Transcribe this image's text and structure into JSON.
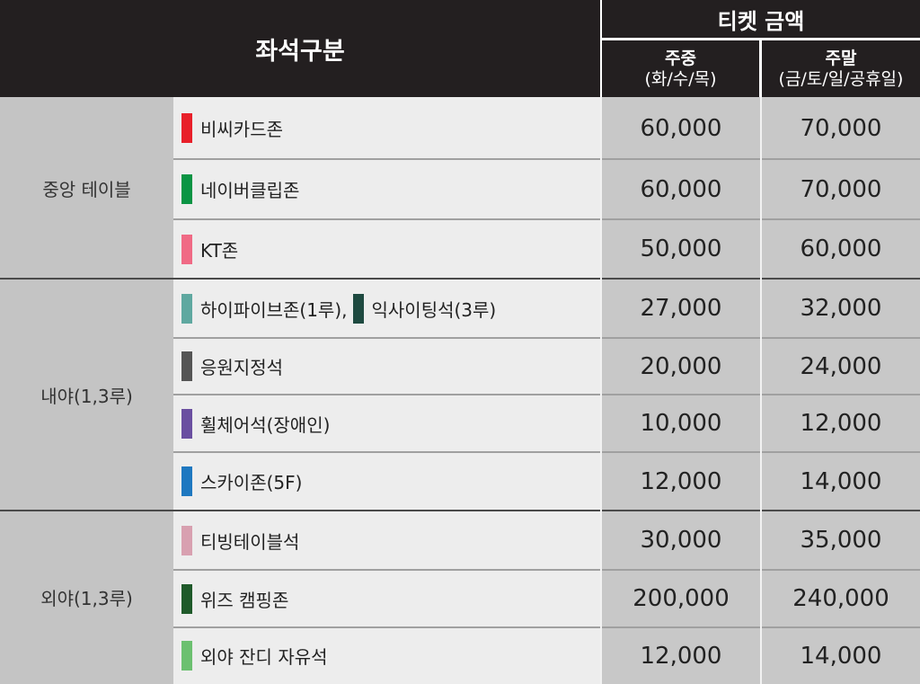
{
  "header": {
    "seat_category": "좌석구분",
    "ticket_price": "티켓 금액",
    "weekday": "주중",
    "weekday_days": "(화/수/목)",
    "weekend": "주말",
    "weekend_days": "(금/토/일/공휴일)"
  },
  "groups": [
    {
      "name": "중앙 테이블",
      "rows": [
        {
          "seats": [
            {
              "label": "비씨카드존",
              "color": "#e8202a"
            }
          ],
          "weekday": "60,000",
          "weekend": "70,000"
        },
        {
          "seats": [
            {
              "label": "네이버클립존",
              "color": "#0a9444"
            }
          ],
          "weekday": "60,000",
          "weekend": "70,000"
        },
        {
          "seats": [
            {
              "label": "KT존",
              "color": "#f06a85"
            }
          ],
          "weekday": "50,000",
          "weekend": "60,000"
        }
      ]
    },
    {
      "name": "내야(1,3루)",
      "rows": [
        {
          "seats": [
            {
              "label": "하이파이브존(1루),",
              "color": "#5fa8a0"
            },
            {
              "label": "익사이팅석(3루)",
              "color": "#1e4a40"
            }
          ],
          "weekday": "27,000",
          "weekend": "32,000"
        },
        {
          "seats": [
            {
              "label": "응원지정석",
              "color": "#555555"
            }
          ],
          "weekday": "20,000",
          "weekend": "24,000"
        },
        {
          "seats": [
            {
              "label": "휠체어석(장애인)",
              "color": "#6a4fa0"
            }
          ],
          "weekday": "10,000",
          "weekend": "12,000"
        },
        {
          "seats": [
            {
              "label": "스카이존(5F)",
              "color": "#1e78c0"
            }
          ],
          "weekday": "12,000",
          "weekend": "14,000"
        }
      ]
    },
    {
      "name": "외야(1,3루)",
      "rows": [
        {
          "seats": [
            {
              "label": "티빙테이블석",
              "color": "#d8a0b0"
            }
          ],
          "weekday": "30,000",
          "weekend": "35,000"
        },
        {
          "seats": [
            {
              "label": "위즈 캠핑존",
              "color": "#1f5a2a"
            }
          ],
          "weekday": "200,000",
          "weekend": "240,000"
        },
        {
          "seats": [
            {
              "label": "외야 잔디 자유석",
              "color": "#6cc070"
            }
          ],
          "weekday": "12,000",
          "weekend": "14,000"
        }
      ]
    }
  ]
}
